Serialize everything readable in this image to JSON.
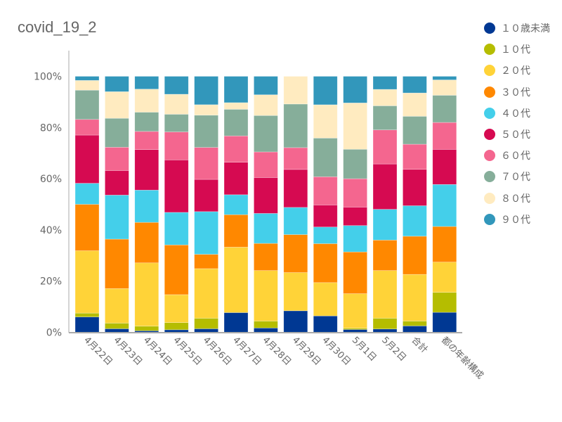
{
  "chart_data": {
    "type": "bar",
    "stacked": true,
    "normalized": true,
    "title": "covid_19_2",
    "xlabel": "",
    "ylabel": "",
    "ylim": [
      0,
      100
    ],
    "yticks": [
      "0%",
      "20%",
      "40%",
      "60%",
      "80%",
      "100%"
    ],
    "grid": false,
    "legend_position": "right",
    "categories": [
      "4月22日",
      "4月23日",
      "4月24日",
      "4月25日",
      "4月26日",
      "4月27日",
      "4月28日",
      "4月29日",
      "4月30日",
      "5月1日",
      "5月2日",
      "合計",
      "都の年齢構成"
    ],
    "series": [
      {
        "name": "１０歳未満",
        "color": "#003893",
        "values": [
          6.0,
          1.4,
          0.6,
          1.0,
          1.4,
          7.7,
          1.7,
          8.4,
          6.4,
          1.1,
          1.3,
          2.5,
          7.8
        ]
      },
      {
        "name": "１０代",
        "color": "#b5bd00",
        "values": [
          1.5,
          2.2,
          1.8,
          2.8,
          4.1,
          0,
          2.7,
          0,
          0,
          0.5,
          4.2,
          1.9,
          7.8
        ]
      },
      {
        "name": "２０代",
        "color": "#ffd338",
        "values": [
          24.3,
          13.5,
          24.7,
          10.9,
          19.4,
          25.6,
          19.7,
          14.9,
          13.0,
          13.5,
          18.6,
          18.2,
          11.8
        ]
      },
      {
        "name": "３０代",
        "color": "#ff8800",
        "values": [
          18.1,
          19.3,
          15.8,
          19.4,
          5.6,
          12.7,
          10.6,
          14.8,
          15.2,
          16.3,
          11.9,
          14.9,
          13.9
        ]
      },
      {
        "name": "４０代",
        "color": "#44cfea",
        "values": [
          8.2,
          17.2,
          12.6,
          12.7,
          16.7,
          7.8,
          11.7,
          10.6,
          6.5,
          10.3,
          12.0,
          11.9,
          16.4
        ]
      },
      {
        "name": "５０代",
        "color": "#d60a51",
        "values": [
          18.8,
          9.6,
          15.8,
          20.5,
          12.6,
          12.7,
          14.0,
          14.8,
          8.6,
          7.2,
          17.7,
          14.2,
          13.7
        ]
      },
      {
        "name": "６０代",
        "color": "#f4668f",
        "values": [
          6.1,
          9.1,
          7.1,
          10.9,
          12.5,
          10.3,
          10.0,
          8.5,
          11.0,
          11.1,
          13.3,
          9.8,
          10.5
        ]
      },
      {
        "name": "７０代",
        "color": "#86ae9a",
        "values": [
          11.4,
          11.3,
          7.5,
          6.9,
          12.6,
          10.4,
          14.2,
          17.0,
          15.1,
          11.5,
          9.4,
          10.9,
          10.6
        ]
      },
      {
        "name": "８０代",
        "color": "#ffebc0",
        "values": [
          3.8,
          10.4,
          9.0,
          7.8,
          4.1,
          2.6,
          8.1,
          10.8,
          13.0,
          18.1,
          6.4,
          9.1,
          6.0
        ]
      },
      {
        "name": "９０代",
        "color": "#3297bb",
        "values": [
          1.6,
          6.0,
          5.0,
          7.0,
          11.1,
          10.3,
          7.2,
          0,
          11.1,
          10.4,
          5.1,
          6.5,
          1.4
        ]
      }
    ]
  }
}
